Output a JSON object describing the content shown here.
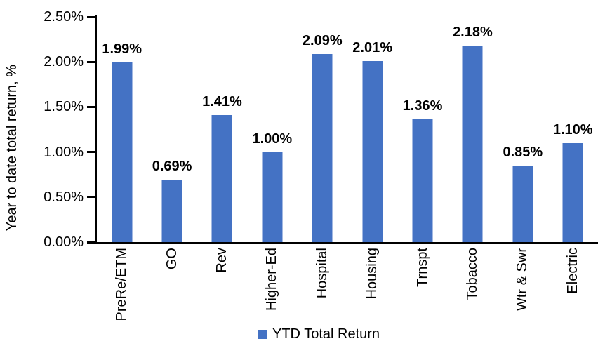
{
  "chart_data": {
    "type": "bar",
    "title": "",
    "categories": [
      "PreRe/ETM",
      "GO",
      "Rev",
      "Higher-Ed",
      "Hospital",
      "Housing",
      "Trnspt",
      "Tobacco",
      "Wtr & Swr",
      "Electric"
    ],
    "series": [
      {
        "name": "YTD Total Return",
        "values": [
          1.99,
          0.69,
          1.41,
          1.0,
          2.09,
          2.01,
          1.36,
          2.18,
          0.85,
          1.1
        ],
        "data_labels": [
          "1.99%",
          "0.69%",
          "1.41%",
          "1.00%",
          "2.09%",
          "2.01%",
          "1.36%",
          "2.18%",
          "0.85%",
          "1.10%"
        ],
        "color": "#4472C4"
      }
    ],
    "xlabel": "",
    "ylabel": "Year to date total return, %",
    "ylim": [
      0,
      2.5
    ],
    "ytick_labels": [
      "0.00%",
      "0.50%",
      "1.00%",
      "1.50%",
      "2.00%",
      "2.50%"
    ],
    "grid": false,
    "legend_position": "bottom"
  },
  "legend": {
    "label": "YTD Total Return",
    "swatch_color": "#4472C4"
  },
  "colors": {
    "bar": "#4472C4",
    "axis": "#000000",
    "text": "#000000",
    "background": "#FFFFFF"
  }
}
